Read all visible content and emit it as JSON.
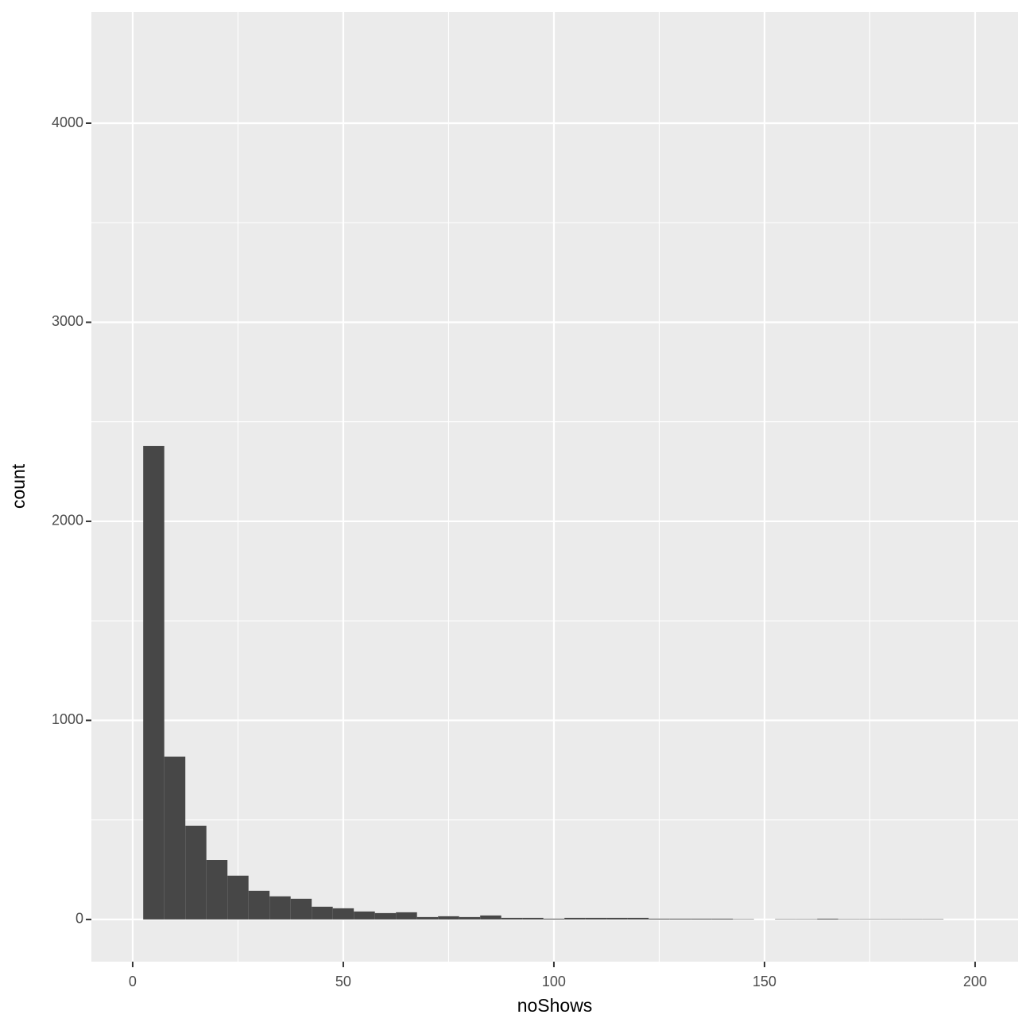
{
  "chart_data": {
    "type": "histogram",
    "x_label": "noShows",
    "y_label": "count",
    "bins": [
      2.5,
      7.5,
      12.5,
      17.5,
      22.5,
      27.5,
      32.5,
      37.5,
      42.5,
      47.5,
      52.5,
      57.5,
      62.5,
      67.5,
      72.5,
      77.5,
      82.5,
      87.5,
      92.5,
      97.5,
      102.5,
      107.5,
      112.5,
      117.5,
      122.5,
      127.5,
      132.5,
      137.5,
      142.5,
      147.5,
      152.5,
      157.5,
      162.5,
      167.5,
      172.5,
      177.5,
      182.5,
      187.5,
      192.5
    ],
    "values": [
      2379,
      818,
      471,
      299,
      220,
      144,
      116,
      104,
      64,
      56,
      40,
      32,
      36,
      12,
      16,
      12,
      20,
      8,
      8,
      4,
      8,
      8,
      8,
      8,
      4,
      4,
      4,
      4,
      2,
      0,
      2,
      2,
      4,
      2,
      2,
      2,
      2,
      2
    ],
    "color": "#474747",
    "xlim": [
      -9.8,
      210.2
    ],
    "xticks": [
      0,
      50,
      100,
      150,
      200
    ],
    "x_minor_ticks": [
      25,
      75,
      125,
      175
    ],
    "ylim": [
      -212,
      4559
    ],
    "yticks": [
      0,
      1000,
      2000,
      3000,
      4000
    ],
    "y_minor_ticks": [
      500,
      1500,
      2500,
      3500
    ],
    "grid": true
  }
}
